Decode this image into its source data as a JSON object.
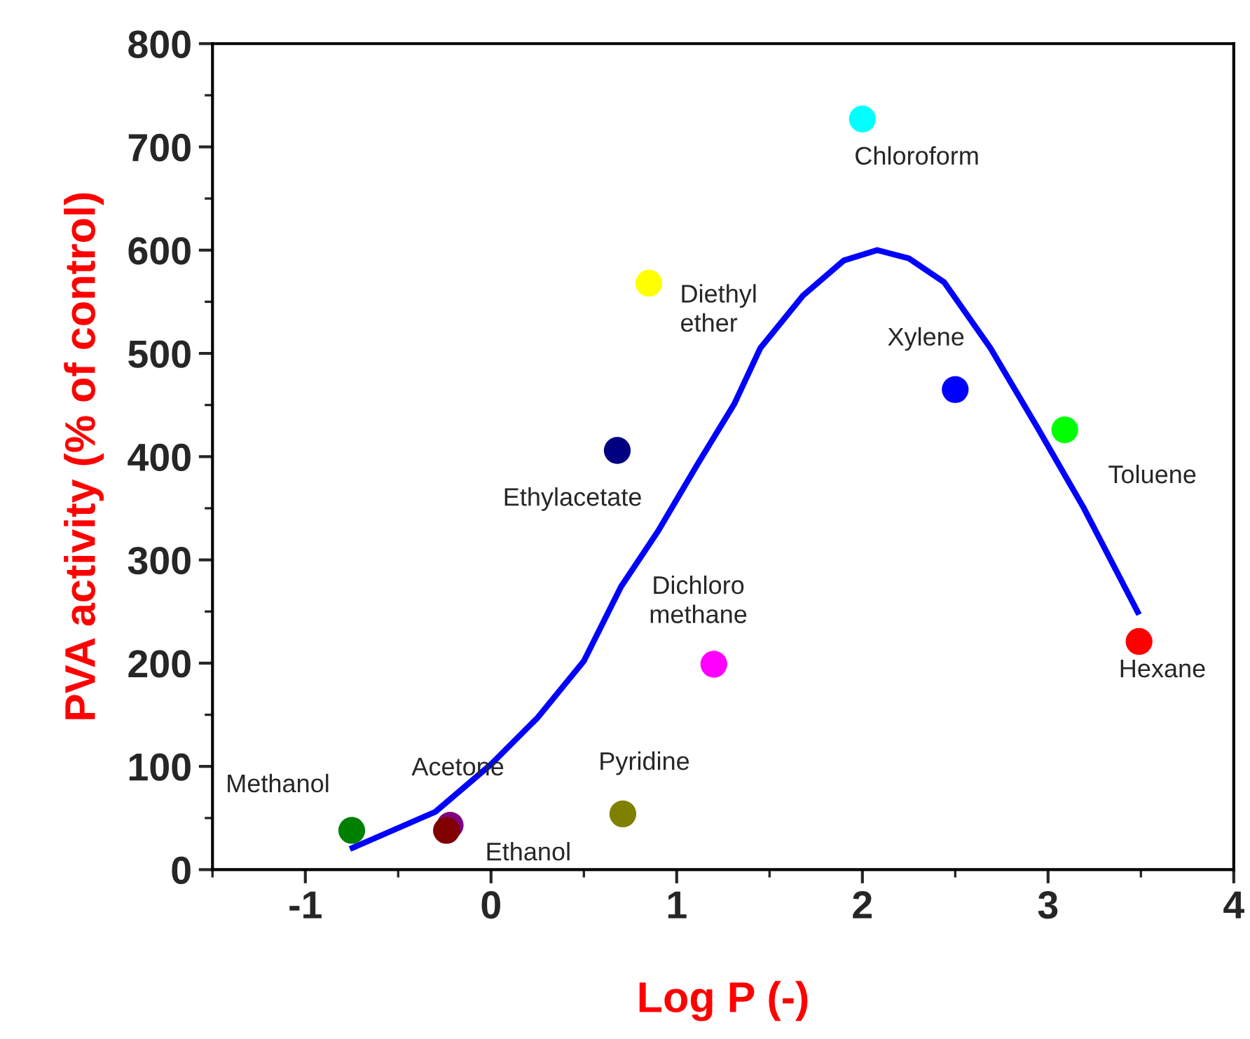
{
  "chart_data": {
    "type": "scatter",
    "xlabel": "Log P (-)",
    "ylabel": "PVA activity (% of control)",
    "xlim": [
      -1.5,
      4
    ],
    "xticks": [
      -1,
      0,
      1,
      2,
      3,
      4
    ],
    "ylim": [
      0,
      800
    ],
    "yticks": [
      0,
      100,
      200,
      300,
      400,
      500,
      600,
      700,
      800
    ],
    "grid": false,
    "legend": false,
    "marker": "circle",
    "series": [
      {
        "type": "line",
        "color": "#0000ff",
        "marker": "none",
        "line_style": "solid",
        "x": [
          -0.76,
          -0.3,
          0,
          0.25,
          0.5,
          0.7,
          0.9,
          1.11,
          1.31,
          1.45,
          1.68,
          1.9,
          2.08,
          2.25,
          2.44,
          2.69,
          2.94,
          3.19,
          3.49
        ],
        "values": [
          20,
          56,
          102,
          147,
          202,
          274,
          328,
          392,
          451,
          505,
          556,
          590,
          600,
          592,
          569,
          505,
          429,
          351,
          247
        ]
      },
      {
        "name": "Methanol",
        "color": "#008000",
        "x": [
          -0.75
        ],
        "values": [
          38
        ]
      },
      {
        "name": "Acetone",
        "color": "#800080",
        "x": [
          -0.22
        ],
        "values": [
          43
        ]
      },
      {
        "name": "Ethanol",
        "color": "#800000",
        "x": [
          -0.24
        ],
        "values": [
          38
        ]
      },
      {
        "name": "Pyridine",
        "color": "#808000",
        "x": [
          0.71
        ],
        "values": [
          54
        ]
      },
      {
        "name": "Dichloro\nmethane",
        "color": "#ff00ff",
        "x": [
          1.2
        ],
        "values": [
          199
        ]
      },
      {
        "name": "Ethylacetate",
        "color": "#000080",
        "x": [
          0.68
        ],
        "values": [
          406
        ]
      },
      {
        "name": "Diethyl\nether",
        "color": "#ffff00",
        "x": [
          0.85
        ],
        "values": [
          568
        ]
      },
      {
        "name": "Chloroform",
        "color": "#00ffff",
        "x": [
          2.0
        ],
        "values": [
          727
        ]
      },
      {
        "name": "Xylene",
        "color": "#0000ff",
        "x": [
          2.5
        ],
        "values": [
          465
        ]
      },
      {
        "name": "Toluene",
        "color": "#00ff00",
        "x": [
          3.09
        ],
        "values": [
          426
        ]
      },
      {
        "name": "Hexane",
        "color": "#ff0000",
        "x": [
          3.49
        ],
        "values": [
          221
        ]
      }
    ]
  }
}
